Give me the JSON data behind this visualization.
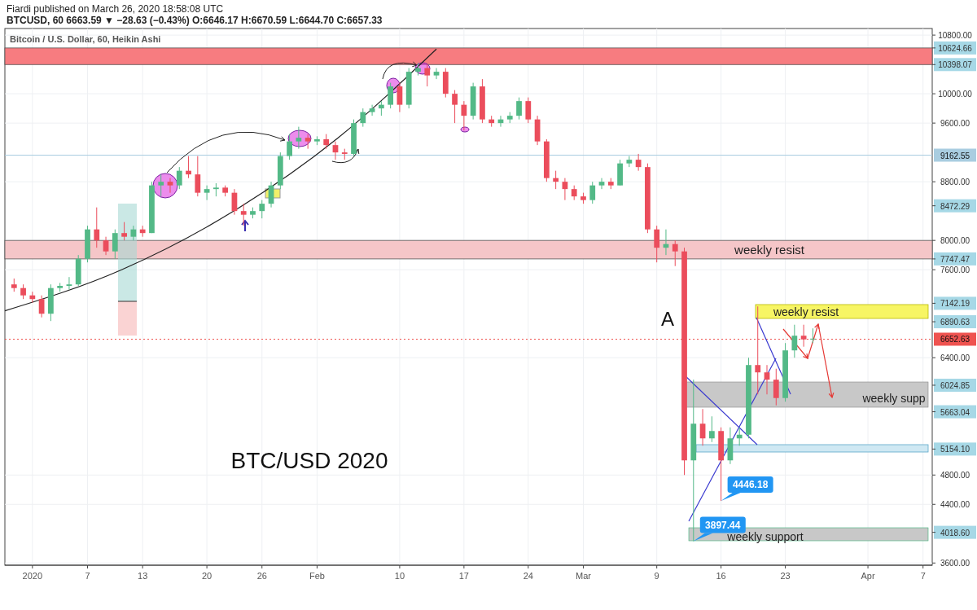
{
  "chart_data": {
    "type": "candlestick",
    "title": "Fiardi published on March 26, 2020 18:58:08 UTC",
    "subtitle": "BTCUSD, 60  6663.59 ▼ −28.63 (−0.43%) O:6646.17 H:6670.59 L:6644.70 C:6657.33",
    "x": [
      "2019-12-30",
      "2019-12-31",
      "2020-01-01",
      "2020-01-02",
      "2020-01-03",
      "2020-01-04",
      "2020-01-05",
      "2020-01-06",
      "2020-01-07",
      "2020-01-08",
      "2020-01-09",
      "2020-01-10",
      "2020-01-11",
      "2020-01-12",
      "2020-01-13",
      "2020-01-14",
      "2020-01-15",
      "2020-01-16",
      "2020-01-17",
      "2020-01-18",
      "2020-01-19",
      "2020-01-20",
      "2020-01-21",
      "2020-01-22",
      "2020-01-23",
      "2020-01-24",
      "2020-01-25",
      "2020-01-26",
      "2020-01-27",
      "2020-01-28",
      "2020-01-29",
      "2020-01-30",
      "2020-01-31",
      "2020-02-01",
      "2020-02-02",
      "2020-02-03",
      "2020-02-04",
      "2020-02-05",
      "2020-02-06",
      "2020-02-07",
      "2020-02-08",
      "2020-02-09",
      "2020-02-10",
      "2020-02-11",
      "2020-02-12",
      "2020-02-13",
      "2020-02-14",
      "2020-02-15",
      "2020-02-16",
      "2020-02-17",
      "2020-02-18",
      "2020-02-19",
      "2020-02-20",
      "2020-02-21",
      "2020-02-22",
      "2020-02-23",
      "2020-02-24",
      "2020-02-25",
      "2020-02-26",
      "2020-02-27",
      "2020-02-28",
      "2020-02-29",
      "2020-03-01",
      "2020-03-02",
      "2020-03-03",
      "2020-03-04",
      "2020-03-05",
      "2020-03-06",
      "2020-03-07",
      "2020-03-08",
      "2020-03-09",
      "2020-03-10",
      "2020-03-11",
      "2020-03-12",
      "2020-03-13",
      "2020-03-14",
      "2020-03-15",
      "2020-03-16",
      "2020-03-17",
      "2020-03-18",
      "2020-03-19",
      "2020-03-20",
      "2020-03-21",
      "2020-03-22",
      "2020-03-23",
      "2020-03-24",
      "2020-03-25",
      "2020-03-26"
    ],
    "ohlc": [
      [
        7400,
        7480,
        7300,
        7350
      ],
      [
        7350,
        7400,
        7200,
        7250
      ],
      [
        7250,
        7300,
        7150,
        7200
      ],
      [
        7200,
        7250,
        6950,
        7000
      ],
      [
        7000,
        7400,
        6900,
        7350
      ],
      [
        7350,
        7420,
        7300,
        7380
      ],
      [
        7380,
        7500,
        7330,
        7400
      ],
      [
        7400,
        7800,
        7380,
        7750
      ],
      [
        7750,
        8200,
        7700,
        8150
      ],
      [
        8150,
        8450,
        7900,
        8000
      ],
      [
        8000,
        8050,
        7800,
        7850
      ],
      [
        7850,
        8150,
        7750,
        8100
      ],
      [
        8100,
        8250,
        8000,
        8050
      ],
      [
        8050,
        8200,
        8000,
        8150
      ],
      [
        8150,
        8200,
        8050,
        8100
      ],
      [
        8100,
        8800,
        8100,
        8750
      ],
      [
        8750,
        8900,
        8600,
        8800
      ],
      [
        8800,
        8850,
        8650,
        8750
      ],
      [
        8750,
        9000,
        8700,
        8950
      ],
      [
        8950,
        9150,
        8850,
        8900
      ],
      [
        8900,
        9150,
        8600,
        8650
      ],
      [
        8650,
        8750,
        8550,
        8700
      ],
      [
        8700,
        8780,
        8600,
        8720
      ],
      [
        8720,
        8750,
        8600,
        8650
      ],
      [
        8650,
        8700,
        8350,
        8400
      ],
      [
        8400,
        8500,
        8200,
        8350
      ],
      [
        8350,
        8450,
        8300,
        8400
      ],
      [
        8400,
        8550,
        8300,
        8500
      ],
      [
        8500,
        8800,
        8450,
        8750
      ],
      [
        8750,
        9200,
        8700,
        9150
      ],
      [
        9150,
        9450,
        9100,
        9350
      ],
      [
        9350,
        9550,
        9250,
        9400
      ],
      [
        9400,
        9450,
        9250,
        9350
      ],
      [
        9350,
        9420,
        9300,
        9380
      ],
      [
        9380,
        9450,
        9250,
        9300
      ],
      [
        9300,
        9350,
        9100,
        9200
      ],
      [
        9200,
        9250,
        9100,
        9180
      ],
      [
        9180,
        9650,
        9150,
        9600
      ],
      [
        9600,
        9800,
        9550,
        9750
      ],
      [
        9750,
        9850,
        9700,
        9800
      ],
      [
        9800,
        9900,
        9700,
        9850
      ],
      [
        9850,
        10150,
        9800,
        10100
      ],
      [
        10100,
        10150,
        9750,
        9850
      ],
      [
        9850,
        10350,
        9800,
        10300
      ],
      [
        10300,
        10420,
        10250,
        10350
      ],
      [
        10350,
        10400,
        10100,
        10250
      ],
      [
        10250,
        10350,
        10200,
        10300
      ],
      [
        10300,
        10350,
        9950,
        10000
      ],
      [
        10000,
        10050,
        9600,
        9850
      ],
      [
        9850,
        9900,
        9500,
        9700
      ],
      [
        9700,
        10150,
        9650,
        10100
      ],
      [
        10100,
        10200,
        9600,
        9650
      ],
      [
        9650,
        9700,
        9550,
        9600
      ],
      [
        9600,
        9700,
        9550,
        9650
      ],
      [
        9650,
        9750,
        9600,
        9700
      ],
      [
        9700,
        9950,
        9650,
        9900
      ],
      [
        9900,
        9950,
        9600,
        9650
      ],
      [
        9650,
        9700,
        9300,
        9350
      ],
      [
        9350,
        9380,
        8800,
        8850
      ],
      [
        8850,
        8950,
        8700,
        8800
      ],
      [
        8800,
        8850,
        8550,
        8700
      ],
      [
        8700,
        8750,
        8550,
        8600
      ],
      [
        8600,
        8650,
        8500,
        8550
      ],
      [
        8550,
        8800,
        8500,
        8750
      ],
      [
        8750,
        8850,
        8700,
        8800
      ],
      [
        8800,
        8850,
        8700,
        8750
      ],
      [
        8750,
        9100,
        8750,
        9050
      ],
      [
        9050,
        9150,
        9000,
        9100
      ],
      [
        9100,
        9180,
        8950,
        9000
      ],
      [
        9000,
        9050,
        8100,
        8150
      ],
      [
        8150,
        8200,
        7700,
        7900
      ],
      [
        7900,
        8150,
        7800,
        7950
      ],
      [
        7950,
        8000,
        7650,
        7850
      ],
      [
        7850,
        7900,
        4800,
        5000
      ],
      [
        5000,
        6100,
        3897.44,
        5500
      ],
      [
        5500,
        5700,
        5200,
        5300
      ],
      [
        5300,
        5600,
        5250,
        5400
      ],
      [
        5400,
        5450,
        4446.18,
        5000
      ],
      [
        5000,
        5450,
        4950,
        5300
      ],
      [
        5300,
        5450,
        5200,
        5350
      ],
      [
        5350,
        6400,
        5300,
        6300
      ],
      [
        6300,
        7100,
        5900,
        6200
      ],
      [
        6200,
        6300,
        5900,
        6100
      ],
      [
        6100,
        6250,
        5750,
        5850
      ],
      [
        5850,
        6600,
        5800,
        6500
      ],
      [
        6500,
        6850,
        6400,
        6700
      ],
      [
        6700,
        6850,
        6550,
        6650
      ],
      [
        6650,
        6800,
        6600,
        6660
      ]
    ],
    "colors": [
      "#eb4d5c",
      "#eb4d5c",
      "#eb4d5c",
      "#eb4d5c",
      "#53b987",
      "#53b987",
      "#53b987",
      "#53b987",
      "#53b987",
      "#eb4d5c",
      "#eb4d5c",
      "#53b987",
      "#eb4d5c",
      "#53b987",
      "#eb4d5c",
      "#53b987",
      "#53b987",
      "#eb4d5c",
      "#53b987",
      "#eb4d5c",
      "#eb4d5c",
      "#53b987",
      "#53b987",
      "#eb4d5c",
      "#eb4d5c",
      "#eb4d5c",
      "#53b987",
      "#53b987",
      "#53b987",
      "#53b987",
      "#53b987",
      "#53b987",
      "#eb4d5c",
      "#53b987",
      "#eb4d5c",
      "#eb4d5c",
      "#eb4d5c",
      "#53b987",
      "#53b987",
      "#53b987",
      "#53b987",
      "#53b987",
      "#eb4d5c",
      "#53b987",
      "#53b987",
      "#eb4d5c",
      "#53b987",
      "#eb4d5c",
      "#eb4d5c",
      "#eb4d5c",
      "#53b987",
      "#eb4d5c",
      "#eb4d5c",
      "#53b987",
      "#53b987",
      "#53b987",
      "#eb4d5c",
      "#eb4d5c",
      "#eb4d5c",
      "#eb4d5c",
      "#eb4d5c",
      "#eb4d5c",
      "#eb4d5c",
      "#53b987",
      "#53b987",
      "#eb4d5c",
      "#53b987",
      "#53b987",
      "#eb4d5c",
      "#eb4d5c",
      "#eb4d5c",
      "#53b987",
      "#eb4d5c",
      "#eb4d5c",
      "#53b987",
      "#eb4d5c",
      "#53b987",
      "#eb4d5c",
      "#53b987",
      "#53b987",
      "#53b987",
      "#eb4d5c",
      "#eb4d5c",
      "#eb4d5c",
      "#53b987",
      "#53b987",
      "#eb4d5c",
      "#53b987"
    ],
    "xlim": [
      "2019-12-29",
      "2020-04-08"
    ],
    "xticks": [
      {
        "value": "2020-01-01",
        "label": "2020"
      },
      {
        "value": "2020-01-07",
        "label": "7"
      },
      {
        "value": "2020-01-13",
        "label": "13"
      },
      {
        "value": "2020-01-20",
        "label": "20"
      },
      {
        "value": "2020-01-26",
        "label": "26"
      },
      {
        "value": "2020-02-01",
        "label": "Feb"
      },
      {
        "value": "2020-02-10",
        "label": "10"
      },
      {
        "value": "2020-02-17",
        "label": "17"
      },
      {
        "value": "2020-02-24",
        "label": "24"
      },
      {
        "value": "2020-03-01",
        "label": "Mar"
      },
      {
        "value": "2020-03-09",
        "label": "9"
      },
      {
        "value": "2020-03-16",
        "label": "16"
      },
      {
        "value": "2020-03-23",
        "label": "23"
      },
      {
        "value": "2020-04-01",
        "label": "Apr"
      },
      {
        "value": "2020-04-07",
        "label": "7"
      }
    ],
    "ylim": [
      3570,
      10890
    ],
    "yticks": [
      {
        "value": 10800,
        "label": "10800.00"
      },
      {
        "value": 10624.66,
        "label": "10624.66"
      },
      {
        "value": 10398.07,
        "label": "10398.07"
      },
      {
        "value": 10000,
        "label": "10000.00"
      },
      {
        "value": 9600,
        "label": "9600.00"
      },
      {
        "value": 8800,
        "label": "8800.00"
      },
      {
        "value": 8472.29,
        "label": "8472.29"
      },
      {
        "value": 8000,
        "label": "8000.00"
      },
      {
        "value": 7747.47,
        "label": "7747.47"
      },
      {
        "value": 7600,
        "label": "7600.00"
      },
      {
        "value": 7142.19,
        "label": "7142.19"
      },
      {
        "value": 6890.63,
        "label": "6890.63"
      },
      {
        "value": 6400,
        "label": "6400.00"
      },
      {
        "value": 6024.85,
        "label": "6024.85"
      },
      {
        "value": 5663.04,
        "label": "5663.04"
      },
      {
        "value": 5154.1,
        "label": "5154.10"
      },
      {
        "value": 4800,
        "label": "4800.00"
      },
      {
        "value": 4400,
        "label": "4400.00"
      },
      {
        "value": 4018.6,
        "label": "4018.60"
      },
      {
        "value": 3600,
        "label": "3600.00"
      }
    ],
    "grid": true,
    "series": [
      {
        "type": "line",
        "color": "#222222",
        "x": [
          "2019-12-29",
          "2020-01-10T17:00",
          "2020-01-22T19:00",
          "2020-02-03T05:00",
          "2020-02-14"
        ],
        "values": [
          7040,
          7600,
          8390,
          9390,
          10610
        ]
      }
    ],
    "bands": [
      {
        "axis": "y",
        "from": 10398.07,
        "to": 10624.66,
        "label": null,
        "color": "#f77c80"
      },
      {
        "axis": "y",
        "from": 7747.47,
        "to": 8000,
        "label": "weekly resist",
        "color": "#f5c6c8"
      }
    ],
    "ref_lines": [
      {
        "axis": "y",
        "value": 9162.55,
        "label": "9162.55",
        "color": "#a9cde0",
        "line_style": "solid"
      },
      {
        "axis": "y",
        "value": 6652.63,
        "label": "6652.63",
        "color": "#ef5350",
        "line_style": "dotted"
      }
    ],
    "annotations": [
      "Bitcoin / U.S. Dollar, 60, Heikin Ashi",
      "A",
      "BTC/USD 2020",
      "weekly resist",
      "weekly supp",
      "weekly support",
      {
        "text": "4446.18",
        "x": "2020-03-16",
        "y": 4446.18
      },
      {
        "text": "3897.44",
        "x": "2020-03-13",
        "y": 3897.44
      }
    ]
  }
}
